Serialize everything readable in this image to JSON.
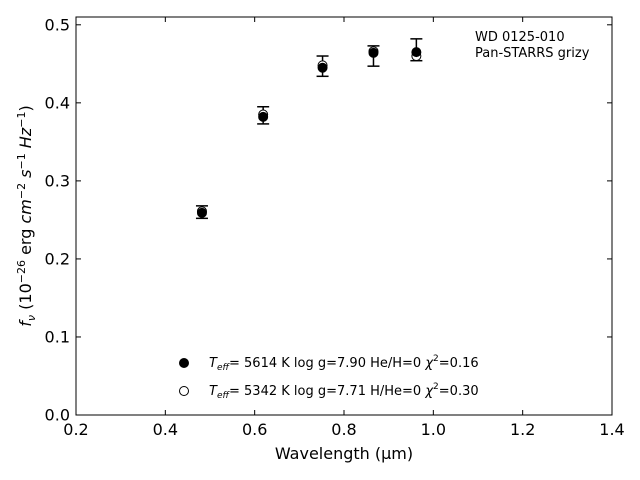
{
  "chart_data": {
    "type": "scatter",
    "xlabel": "Wavelength (μm)",
    "ylabel": "f_ν (10^-26 erg cm^-2 s^-1 Hz^-1)",
    "xlim": [
      0.2,
      1.4
    ],
    "ylim": [
      0.0,
      0.51
    ],
    "xticks": [
      0.2,
      0.4,
      0.6,
      0.8,
      1.0,
      1.2,
      1.4
    ],
    "yticks": [
      0.0,
      0.1,
      0.2,
      0.3,
      0.4,
      0.5
    ],
    "xtick_labels": [
      "0.2",
      "0.4",
      "0.6",
      "0.8",
      "1.0",
      "1.2",
      "1.4"
    ],
    "ytick_labels": [
      "0.0",
      "0.1",
      "0.2",
      "0.3",
      "0.4",
      "0.5"
    ],
    "grid": false,
    "annotation": {
      "line1": "WD 0125-010",
      "line2": "Pan-STARRS grizy"
    },
    "observed": {
      "x": [
        0.482,
        0.619,
        0.752,
        0.866,
        0.962
      ],
      "y": [
        0.26,
        0.384,
        0.447,
        0.46,
        0.468
      ],
      "yerr": [
        0.008,
        0.011,
        0.013,
        0.013,
        0.014
      ]
    },
    "series": [
      {
        "marker": "filled-circle",
        "legend": {
          "teff": "5614 K",
          "logg": "log g=7.90",
          "comp": "He/H=0",
          "chi2": "=0.16"
        },
        "x": [
          0.482,
          0.619,
          0.752,
          0.866,
          0.962
        ],
        "y": [
          0.259,
          0.382,
          0.445,
          0.464,
          0.465
        ]
      },
      {
        "marker": "open-circle",
        "legend": {
          "teff": "5342 K",
          "logg": "log g=7.71",
          "comp": "H/He=0",
          "chi2": "=0.30"
        },
        "x": [
          0.482,
          0.619,
          0.752,
          0.866,
          0.962
        ],
        "y": [
          0.261,
          0.385,
          0.448,
          0.466,
          0.46
        ]
      }
    ],
    "legend_position": "lower-center"
  }
}
